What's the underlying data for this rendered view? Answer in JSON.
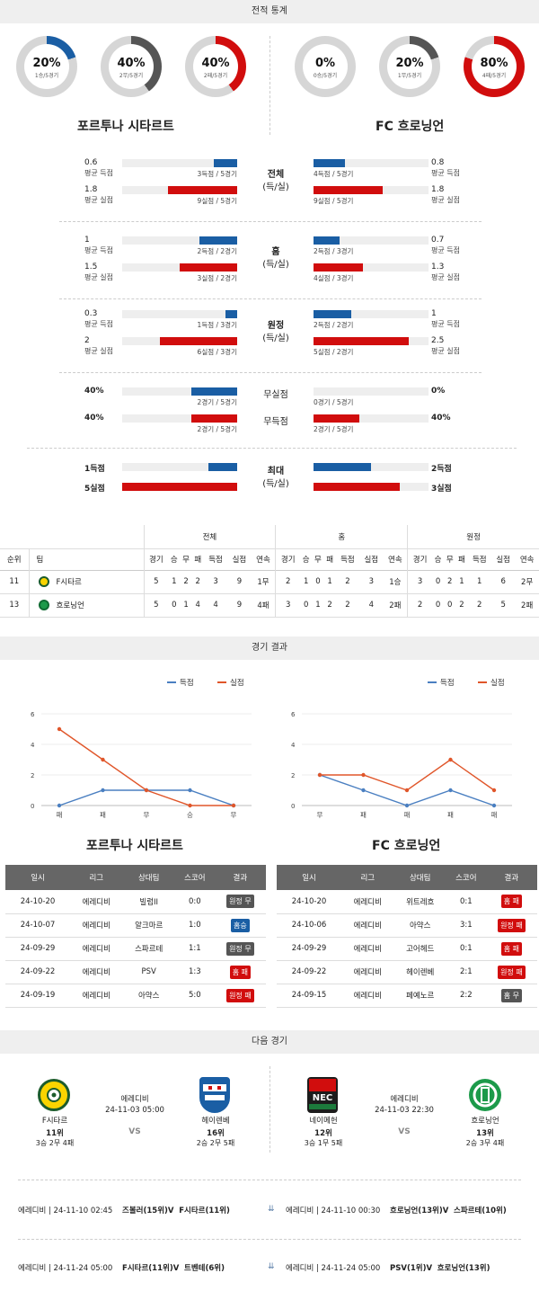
{
  "sections": {
    "record": "전적 통계",
    "results": "경기 결과",
    "next": "다음 경기"
  },
  "home_team": "포르투나 시타르트",
  "away_team": "FC 흐로닝언",
  "donuts": [
    {
      "pct": "20%",
      "sub": "1승/5경기",
      "value": 0.2,
      "color": "#1a5ea4"
    },
    {
      "pct": "40%",
      "sub": "2무/5경기",
      "value": 0.4,
      "color": "#555555"
    },
    {
      "pct": "40%",
      "sub": "2패/5경기",
      "value": 0.4,
      "color": "#d10d0d"
    },
    {
      "pct": "0%",
      "sub": "0승/5경기",
      "value": 0.0,
      "color": "#1a5ea4"
    },
    {
      "pct": "20%",
      "sub": "1무/5경기",
      "value": 0.2,
      "color": "#555555"
    },
    {
      "pct": "80%",
      "sub": "4패/5경기",
      "value": 0.8,
      "color": "#d10d0d"
    }
  ],
  "stat_groups": [
    {
      "label1": "전체",
      "label2": "(득/실)",
      "rows": [
        {
          "lv": "0.6",
          "ls": "평균 득점",
          "lcap": "3득점 / 5경기",
          "lfill": 0.2,
          "rv": "0.8",
          "rs": "평균 득점",
          "rcap": "4득점 / 5경기",
          "rfill": 0.27,
          "color": "blue"
        },
        {
          "lv": "1.8",
          "ls": "평균 실점",
          "lcap": "9실점 / 5경기",
          "lfill": 0.6,
          "rv": "1.8",
          "rs": "평균 실점",
          "rcap": "9실점 / 5경기",
          "rfill": 0.6,
          "color": "red"
        }
      ]
    },
    {
      "label1": "홈",
      "label2": "(득/실)",
      "rows": [
        {
          "lv": "1",
          "ls": "평균 득점",
          "lcap": "2득점 / 2경기",
          "lfill": 0.33,
          "rv": "0.7",
          "rs": "평균 득점",
          "rcap": "2득점 / 3경기",
          "rfill": 0.23,
          "color": "blue"
        },
        {
          "lv": "1.5",
          "ls": "평균 실점",
          "lcap": "3실점 / 2경기",
          "lfill": 0.5,
          "rv": "1.3",
          "rs": "평균 실점",
          "rcap": "4실점 / 3경기",
          "rfill": 0.43,
          "color": "red"
        }
      ]
    },
    {
      "label1": "원정",
      "label2": "(득/실)",
      "rows": [
        {
          "lv": "0.3",
          "ls": "평균 득점",
          "lcap": "1득점 / 3경기",
          "lfill": 0.1,
          "rv": "1",
          "rs": "평균 득점",
          "rcap": "2득점 / 2경기",
          "rfill": 0.33,
          "color": "blue"
        },
        {
          "lv": "2",
          "ls": "평균 실점",
          "lcap": "6실점 / 3경기",
          "lfill": 0.67,
          "rv": "2.5",
          "rs": "평균 실점",
          "rcap": "5실점 / 2경기",
          "rfill": 0.83,
          "color": "red"
        }
      ]
    }
  ],
  "nil_rows": [
    {
      "lv": "40%",
      "lcap": "2경기 / 5경기",
      "lfill": 0.4,
      "label": "무실점",
      "rv": "0%",
      "rcap": "0경기 / 5경기",
      "rfill": 0.0,
      "color": "blue"
    },
    {
      "lv": "40%",
      "lcap": "2경기 / 5경기",
      "lfill": 0.4,
      "label": "무득점",
      "rv": "40%",
      "rcap": "2경기 / 5경기",
      "rfill": 0.4,
      "color": "red"
    }
  ],
  "max_group": {
    "label1": "최대",
    "label2": "(득/실)",
    "rows": [
      {
        "lv": "1득점",
        "lfill": 0.25,
        "rv": "2득점",
        "rfill": 0.5,
        "color": "blue"
      },
      {
        "lv": "5실점",
        "lfill": 1.0,
        "rv": "3실점",
        "rfill": 0.75,
        "color": "red"
      }
    ]
  },
  "standings": {
    "group_headers": [
      "전체",
      "홈",
      "원정"
    ],
    "col_rank": "순위",
    "col_team": "팀",
    "sub_headers": [
      "경기",
      "승",
      "무",
      "패",
      "득점",
      "실점",
      "연속"
    ],
    "rows": [
      {
        "rank": "11",
        "team": "F시타르",
        "all": [
          "5",
          "1",
          "2",
          "2",
          "3",
          "9",
          "1무"
        ],
        "home": [
          "2",
          "1",
          "0",
          "1",
          "2",
          "3",
          "1승"
        ],
        "away": [
          "3",
          "0",
          "2",
          "1",
          "1",
          "6",
          "2무"
        ]
      },
      {
        "rank": "13",
        "team": "흐로닝언",
        "all": [
          "5",
          "0",
          "1",
          "4",
          "4",
          "9",
          "4패"
        ],
        "home": [
          "3",
          "0",
          "1",
          "2",
          "2",
          "4",
          "2패"
        ],
        "away": [
          "2",
          "0",
          "0",
          "2",
          "2",
          "5",
          "2패"
        ]
      }
    ]
  },
  "legend": {
    "scored": "득점",
    "conceded": "실점"
  },
  "chart_data": [
    {
      "type": "line",
      "categories": [
        "패",
        "패",
        "무",
        "승",
        "무"
      ],
      "series": [
        {
          "name": "득점",
          "values": [
            0,
            1,
            1,
            1,
            0
          ],
          "color": "#4a7fc1"
        },
        {
          "name": "실점",
          "values": [
            5,
            3,
            1,
            0,
            0
          ],
          "color": "#e0562a"
        }
      ],
      "ylim": [
        0,
        6
      ],
      "yticks": [
        "0",
        "2",
        "4",
        "6"
      ]
    },
    {
      "type": "line",
      "categories": [
        "무",
        "패",
        "패",
        "패",
        "패"
      ],
      "series": [
        {
          "name": "득점",
          "values": [
            2,
            1,
            0,
            1,
            0
          ],
          "color": "#4a7fc1"
        },
        {
          "name": "실점",
          "values": [
            2,
            2,
            1,
            3,
            1
          ],
          "color": "#e0562a"
        }
      ],
      "ylim": [
        0,
        6
      ],
      "yticks": [
        "0",
        "2",
        "4",
        "6"
      ]
    }
  ],
  "results_headers": [
    "일시",
    "리그",
    "상대팀",
    "스코어",
    "결과"
  ],
  "home_results": [
    {
      "date": "24-10-20",
      "league": "에레디비",
      "opp": "빌럼II",
      "score": "0:0",
      "result": "원정 무",
      "kind": "dark"
    },
    {
      "date": "24-10-07",
      "league": "에레디비",
      "opp": "알크마르",
      "score": "1:0",
      "result": "홈승",
      "kind": "blue"
    },
    {
      "date": "24-09-29",
      "league": "에레디비",
      "opp": "스파르테",
      "score": "1:1",
      "result": "원정 무",
      "kind": "dark"
    },
    {
      "date": "24-09-22",
      "league": "에레디비",
      "opp": "PSV",
      "score": "1:3",
      "result": "홈 패",
      "kind": "red"
    },
    {
      "date": "24-09-19",
      "league": "에레디비",
      "opp": "아약스",
      "score": "5:0",
      "result": "원정 패",
      "kind": "red"
    }
  ],
  "away_results": [
    {
      "date": "24-10-20",
      "league": "에레디비",
      "opp": "위트레흐",
      "score": "0:1",
      "result": "홈 패",
      "kind": "red"
    },
    {
      "date": "24-10-06",
      "league": "에레디비",
      "opp": "아약스",
      "score": "3:1",
      "result": "원정 패",
      "kind": "red"
    },
    {
      "date": "24-09-29",
      "league": "에레디비",
      "opp": "고어헤드",
      "score": "0:1",
      "result": "홈 패",
      "kind": "red"
    },
    {
      "date": "24-09-22",
      "league": "에레디비",
      "opp": "헤이렌베",
      "score": "2:1",
      "result": "원정 패",
      "kind": "red"
    },
    {
      "date": "24-09-15",
      "league": "에레디비",
      "opp": "페예노르",
      "score": "2:2",
      "result": "홈 무",
      "kind": "dark"
    }
  ],
  "next_matches": [
    {
      "league": "에레디비",
      "datetime": "24-11-03 05:00",
      "vs": "VS",
      "home": {
        "name": "F시타르",
        "rank": "11위",
        "rec": "3승 2무 4패"
      },
      "away": {
        "name": "헤이렌베",
        "rank": "16위",
        "rec": "2승 2무 5패"
      }
    },
    {
      "league": "에레디비",
      "datetime": "24-11-03 22:30",
      "vs": "VS",
      "home": {
        "name": "네이메헌",
        "rank": "12위",
        "rec": "3승 1무 5패"
      },
      "away": {
        "name": "흐로닝언",
        "rank": "13위",
        "rec": "2승 3무 4패"
      }
    }
  ],
  "future": [
    {
      "left": "에레디비 | 24-11-10 02:45",
      "mid": "즈볼러(15위)V",
      "right": "F시타르(11위)"
    },
    {
      "left": "에레디비 | 24-11-10 00:30",
      "mid": "흐로닝언(13위)V",
      "right": "스파르테(10위)"
    },
    {
      "left": "에레디비 | 24-11-24 05:00",
      "mid": "F시타르(11위)V",
      "right": "트벤테(6위)"
    },
    {
      "left": "에레디비 | 24-11-24 05:00",
      "mid": "PSV(1위)V",
      "right": "흐로닝언(13위)"
    }
  ]
}
